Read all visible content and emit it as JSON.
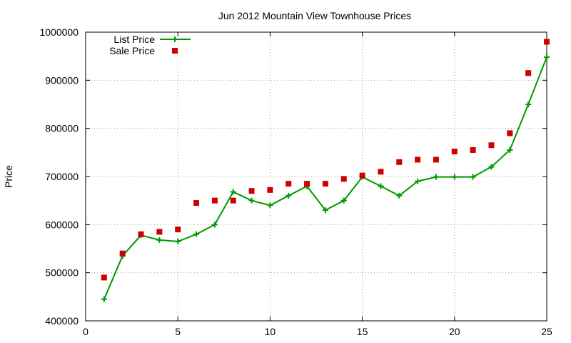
{
  "chart_data": {
    "type": "line",
    "title": "Jun 2012 Mountain View Townhouse Prices",
    "xlabel": "",
    "ylabel": "Price",
    "xlim": [
      0,
      25
    ],
    "ylim": [
      400000,
      1000000
    ],
    "x_ticks": [
      0,
      5,
      10,
      15,
      20,
      25
    ],
    "y_ticks": [
      400000,
      500000,
      600000,
      700000,
      800000,
      900000,
      1000000
    ],
    "grid": true,
    "legend_position": "top-left",
    "series": [
      {
        "name": "List Price",
        "style": "line-with-plus",
        "color": "#009900",
        "x": [
          1,
          2,
          3,
          4,
          5,
          6,
          7,
          8,
          9,
          10,
          11,
          12,
          13,
          14,
          15,
          16,
          17,
          18,
          19,
          20,
          21,
          22,
          23,
          24,
          25
        ],
        "y": [
          445000,
          535000,
          578000,
          568000,
          565000,
          580000,
          600000,
          668000,
          650000,
          640000,
          660000,
          680000,
          630000,
          650000,
          699000,
          680000,
          660000,
          690000,
          699000,
          699000,
          699000,
          720000,
          755000,
          850000,
          948000
        ]
      },
      {
        "name": "Sale Price",
        "style": "square-points",
        "color": "#cc0000",
        "x": [
          1,
          2,
          3,
          4,
          5,
          6,
          7,
          8,
          9,
          10,
          11,
          12,
          13,
          14,
          15,
          16,
          17,
          18,
          19,
          20,
          21,
          22,
          23,
          24,
          25
        ],
        "y": [
          490000,
          540000,
          580000,
          585000,
          590000,
          645000,
          650000,
          650000,
          670000,
          672000,
          685000,
          685000,
          685000,
          695000,
          702000,
          710000,
          730000,
          735000,
          735000,
          752000,
          755000,
          765000,
          790000,
          915000,
          980000
        ]
      }
    ]
  }
}
